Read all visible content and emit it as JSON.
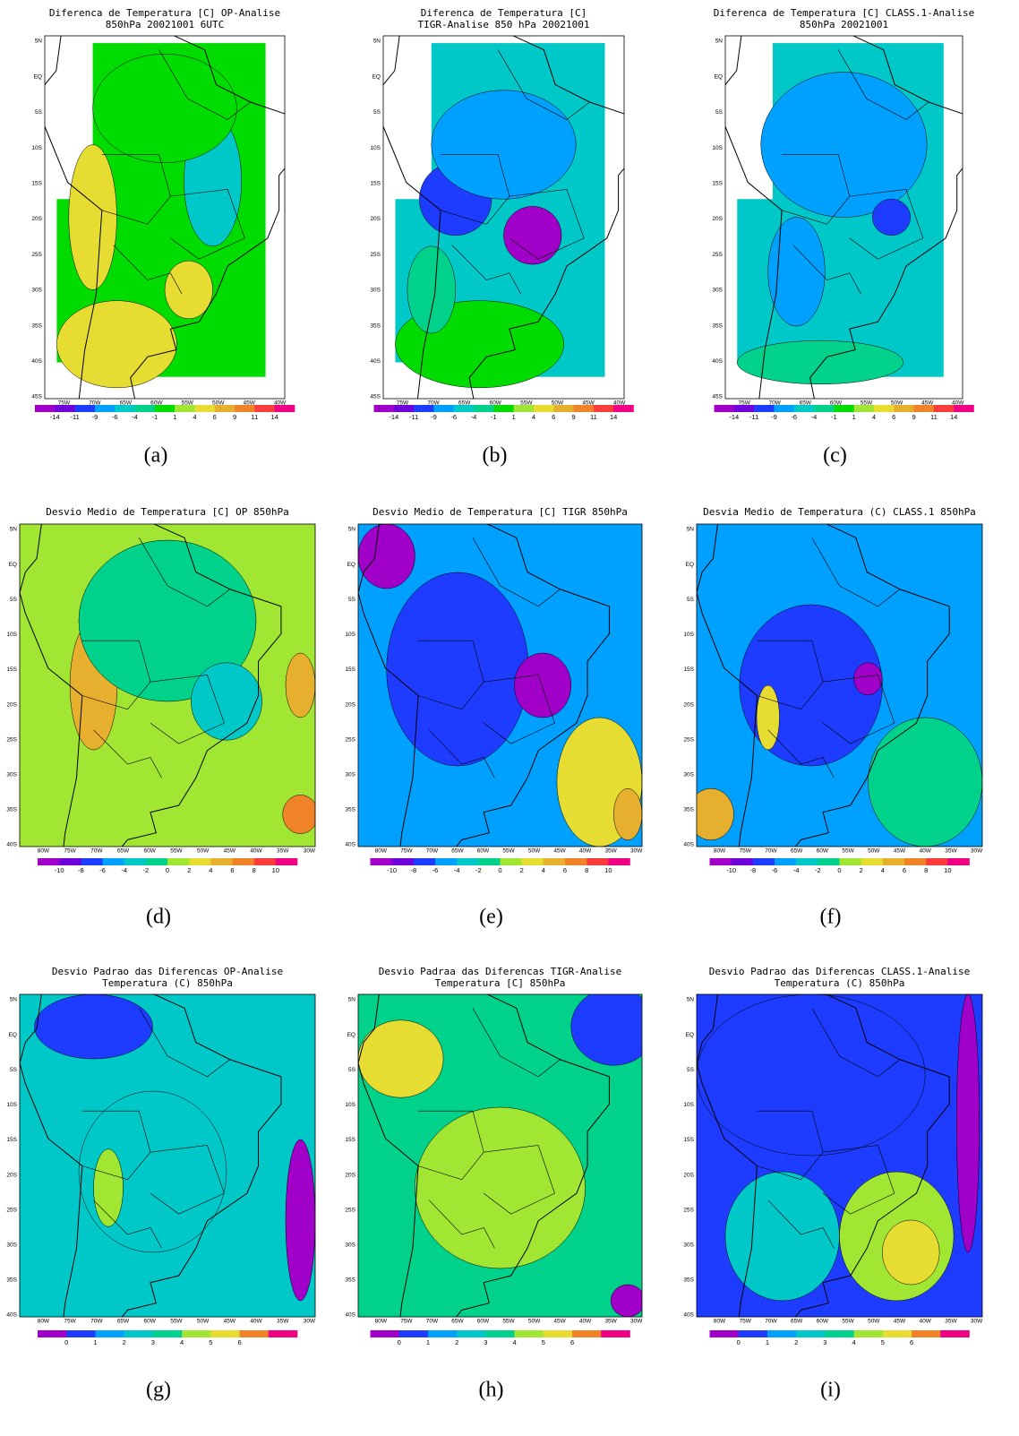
{
  "panels": [
    {
      "title": [
        "Diferenca de Temperatura [C] OP-Analise",
        "850hPa 20021001 6UTC"
      ],
      "caption": "(a)"
    },
    {
      "title": [
        "Diferenca de Temperatura [C]",
        "TIGR-Analise 850 hPa 20021001"
      ],
      "caption": "(b)"
    },
    {
      "title": [
        "Diferenca de Temperatura [C] CLASS.1-Analise",
        "850hPa 20021001"
      ],
      "caption": "(c)"
    },
    {
      "title": [
        "Desvio Medio de Temperatura [C]  OP   850hPa"
      ],
      "caption": "(d)"
    },
    {
      "title": [
        "Desvio Medio de Temperatura [C]  TIGR 850hPa"
      ],
      "caption": "(e)"
    },
    {
      "title": [
        "Desvia Medio de Temperatura (C) CLASS.1 850hPa"
      ],
      "caption": "(f)"
    },
    {
      "title": [
        "Desvio Padrao das Diferencas  OP-Analise",
        "Temperatura (C) 850hPa"
      ],
      "caption": "(g)"
    },
    {
      "title": [
        "Desvio Padraa das Diferencas TIGR-Analise",
        "Temperatura [C] 850hPa"
      ],
      "caption": "(h)"
    },
    {
      "title": [
        "Desvio Padrao das Diferencas CLASS.1-Analise",
        "Temperatura (C) 850hPa"
      ],
      "caption": "(i)"
    }
  ],
  "colorbars": [
    {
      "labels": [
        "-14",
        "-11",
        "-9",
        "-6",
        "-4",
        "-1",
        "1",
        "4",
        "6",
        "9",
        "11",
        "14"
      ],
      "colors": [
        "#a000c8",
        "#6e00dc",
        "#1e3cff",
        "#00a0ff",
        "#00c8c8",
        "#00d28c",
        "#00dc00",
        "#a0e632",
        "#e6dc32",
        "#e6af2d",
        "#f08228",
        "#fa3c3c",
        "#f00082"
      ]
    },
    {
      "labels": [
        "-10",
        "-8",
        "-6",
        "-4",
        "-2",
        "0",
        "2",
        "4",
        "6",
        "8",
        "10"
      ],
      "colors": [
        "#a000c8",
        "#6e00dc",
        "#1e3cff",
        "#00a0ff",
        "#00c8c8",
        "#00d28c",
        "#a0e632",
        "#e6dc32",
        "#e6af2d",
        "#f08228",
        "#fa3c3c",
        "#f00082"
      ]
    },
    {
      "labels": [
        "0",
        "1",
        "2",
        "3",
        "4",
        "5",
        "6"
      ],
      "colors": [
        "#a000c8",
        "#1e3cff",
        "#00a0ff",
        "#00c8c8",
        "#00d28c",
        "#a0e632",
        "#e6dc32",
        "#f08228",
        "#f00082"
      ]
    }
  ],
  "axes": [
    {
      "lat": [
        "5N",
        "EQ",
        "5S",
        "10S",
        "15S",
        "20S",
        "25S",
        "30S",
        "35S",
        "40S",
        "45S"
      ],
      "lon": [
        "75W",
        "70W",
        "65W",
        "60W",
        "55W",
        "50W",
        "45W",
        "40W"
      ]
    },
    {
      "lat": [
        "5N",
        "EQ",
        "5S",
        "10S",
        "15S",
        "20S",
        "25S",
        "30S",
        "35S",
        "40S"
      ],
      "lon": [
        "80W",
        "75W",
        "70W",
        "65W",
        "60W",
        "55W",
        "50W",
        "45W",
        "40W",
        "35W",
        "30W"
      ]
    }
  ]
}
